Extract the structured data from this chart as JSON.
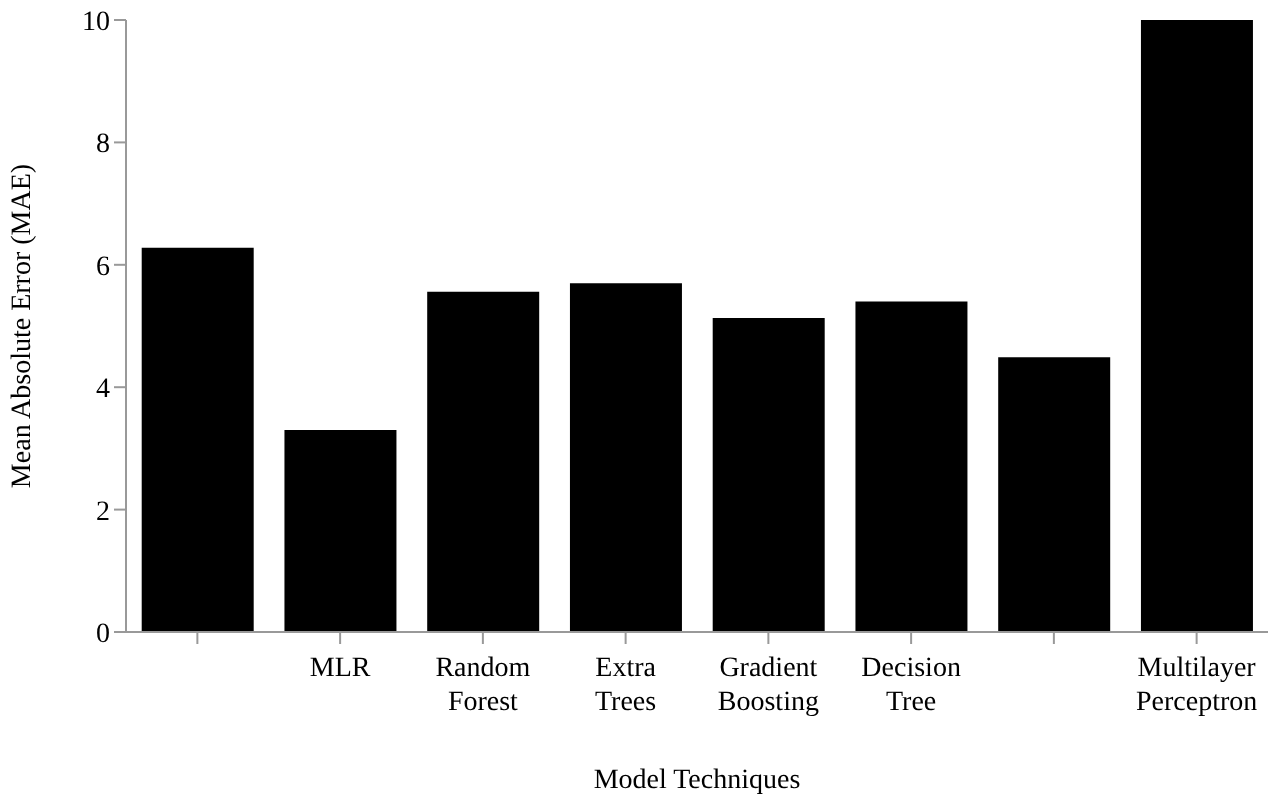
{
  "chart_data": {
    "type": "bar",
    "xlabel": "Model Techniques",
    "ylabel": "Mean Absolute Error (MAE)",
    "categories": [
      null,
      "MLR",
      "Random Forest",
      "Extra Trees",
      "Gradient Boosting",
      "Decision Tree",
      null,
      "Multilayer Perceptron"
    ],
    "values": [
      6.28,
      3.3,
      5.56,
      5.7,
      5.13,
      5.4,
      4.49,
      10
    ],
    "color": "#000000",
    "ylim": [
      0,
      10
    ],
    "yticks": [
      0,
      2,
      4,
      6,
      8,
      10
    ]
  }
}
